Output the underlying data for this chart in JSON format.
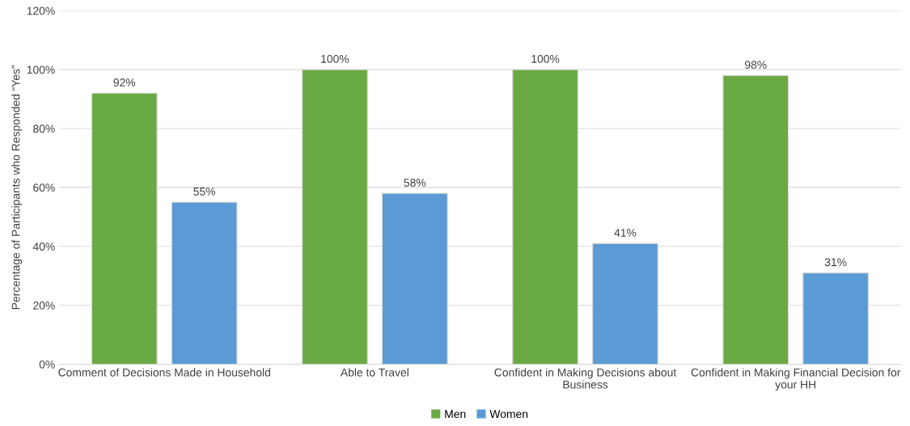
{
  "chart_data": {
    "type": "bar",
    "ylabel": "Percentage of Participants who Responded “Yes”",
    "categories": [
      "Comment of Decisions Made in Household",
      "Able to Travel",
      "Confident in Making Decisions about\nBusiness",
      "Confident in Making Financial Decision for\nyour HH"
    ],
    "series": [
      {
        "name": "Men",
        "color": "#6aaa45",
        "values": [
          92,
          100,
          100,
          98
        ],
        "value_labels": [
          "92%",
          "100%",
          "100%",
          "98%"
        ]
      },
      {
        "name": "Women",
        "color": "#5b9bd5",
        "values": [
          55,
          58,
          41,
          31
        ],
        "value_labels": [
          "55%",
          "58%",
          "41%",
          "31%"
        ]
      }
    ],
    "ylim": [
      0,
      120
    ],
    "yticks": [
      {
        "value": 0,
        "label": "0%"
      },
      {
        "value": 20,
        "label": "20%"
      },
      {
        "value": 40,
        "label": "40%"
      },
      {
        "value": 60,
        "label": "60%"
      },
      {
        "value": 80,
        "label": "80%"
      },
      {
        "value": 100,
        "label": "100%"
      },
      {
        "value": 120,
        "label": "120%"
      }
    ],
    "grid": "y",
    "legend": "bottom"
  }
}
